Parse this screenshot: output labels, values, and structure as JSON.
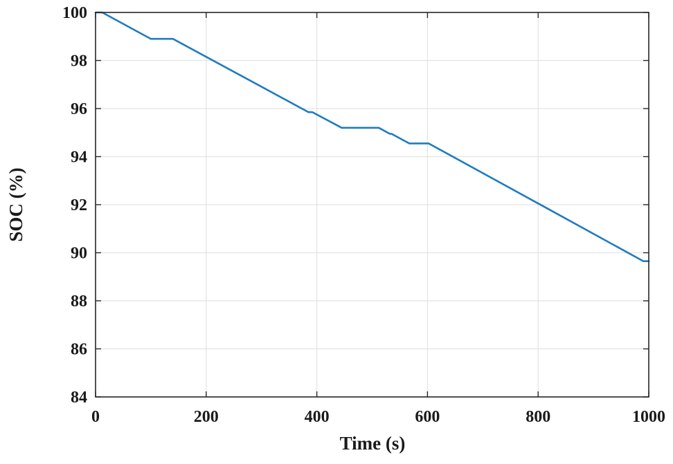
{
  "chart_data": {
    "type": "line",
    "title": "",
    "xlabel": "Time (s)",
    "ylabel": "SOC (%)",
    "xlim": [
      0,
      1000
    ],
    "ylim": [
      84,
      100
    ],
    "xticks": [
      0,
      200,
      400,
      600,
      800,
      1000
    ],
    "yticks": [
      84,
      86,
      88,
      90,
      92,
      94,
      96,
      98,
      100
    ],
    "xtick_labels": [
      "0",
      "200",
      "400",
      "600",
      "800",
      "1000"
    ],
    "ytick_labels": [
      "84",
      "86",
      "88",
      "90",
      "92",
      "94",
      "96",
      "98",
      "100"
    ],
    "grid": true,
    "series": [
      {
        "color": "#1f7bbf",
        "x": [
          0,
          12,
          100,
          140,
          385,
          392,
          445,
          512,
          532,
          535,
          567,
          602,
          820,
          990,
          1000
        ],
        "y": [
          100,
          100,
          98.9,
          98.9,
          95.85,
          95.85,
          95.2,
          95.2,
          94.95,
          94.95,
          94.55,
          94.55,
          91.8,
          89.65,
          89.65
        ]
      }
    ]
  }
}
